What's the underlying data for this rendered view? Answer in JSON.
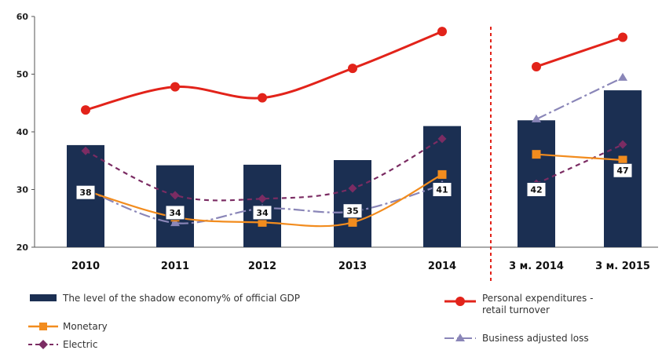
{
  "chart_data": {
    "type": "bar",
    "categories": [
      "2010",
      "2011",
      "2012",
      "2013",
      "2014",
      "3 м. 2014",
      "3 м. 2015"
    ],
    "ylim": [
      20,
      60
    ],
    "yticks": [
      20,
      30,
      40,
      50,
      60
    ],
    "grid": false,
    "divider_after_index": 4,
    "legend_position": "bottom",
    "series": [
      {
        "name": "The level of the shadow economy% of official GDP",
        "kind": "bar",
        "color": "#1b2f52",
        "values": [
          37.7,
          34.2,
          34.3,
          35.1,
          41.0,
          42.0,
          47.2
        ],
        "labels": [
          "38",
          "34",
          "34",
          "35",
          "41",
          "42",
          "47"
        ],
        "label_y": [
          29.5,
          26.0,
          26.0,
          26.3,
          30.0,
          30.0,
          33.3
        ]
      },
      {
        "name": "Personal expenditures - retail turnover",
        "kind": "line",
        "color": "#e2231a",
        "marker": "circle",
        "curve": true,
        "segments": [
          [
            0,
            4
          ],
          [
            5,
            6
          ]
        ],
        "values": [
          43.8,
          47.8,
          45.9,
          51.0,
          57.4,
          51.3,
          56.4
        ]
      },
      {
        "name": "Monetary",
        "kind": "line",
        "color": "#f28c1e",
        "marker": "square",
        "curve": true,
        "segments": [
          [
            0,
            4
          ],
          [
            5,
            6
          ]
        ],
        "values": [
          29.8,
          25.2,
          24.3,
          24.3,
          32.6,
          36.1,
          35.1
        ]
      },
      {
        "name": "Business adjusted loss",
        "kind": "line",
        "color": "#8a86b8",
        "marker": "triangle",
        "dash": "14 4 3 4",
        "curve": true,
        "segments": [
          [
            0,
            4
          ],
          [
            5,
            6
          ]
        ],
        "values": [
          30.0,
          24.2,
          26.7,
          26.2,
          30.8,
          42.2,
          49.4
        ]
      },
      {
        "name": "Electric",
        "kind": "line",
        "color": "#7b2c63",
        "marker": "diamond",
        "dash": "6 5",
        "curve": true,
        "segments": [
          [
            0,
            4
          ],
          [
            5,
            6
          ]
        ],
        "values": [
          36.7,
          29.0,
          28.4,
          30.2,
          38.8,
          31.0,
          37.8
        ]
      }
    ],
    "legend": {
      "bar": "The level of the shadow economy% of official GDP",
      "monetary": "Monetary",
      "electric": "Electric",
      "personal_line1": "Personal expenditures -",
      "personal_line2": "retail turnover",
      "business": "Business adjusted loss"
    }
  }
}
